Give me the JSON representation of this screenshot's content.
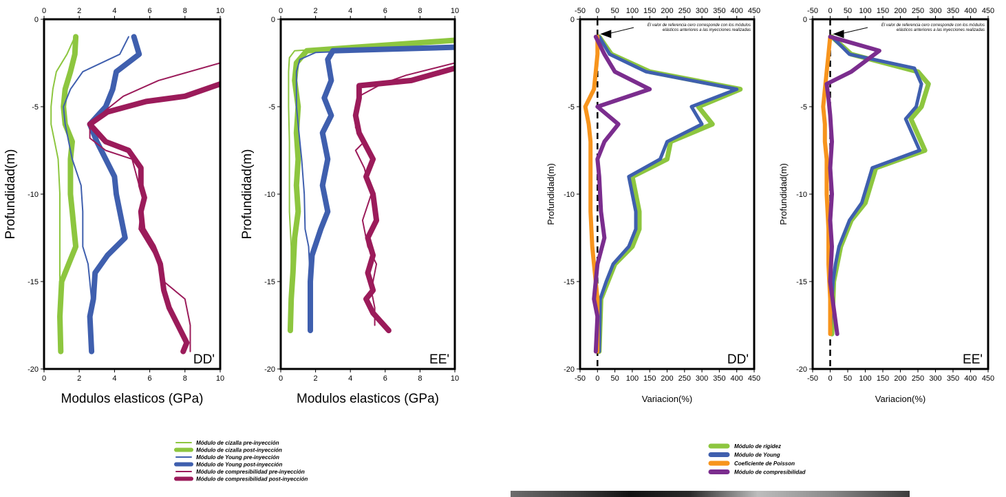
{
  "chart_data": [
    {
      "type": "line",
      "corner_label": "DD'",
      "xlabel": "Modulos elasticos (GPa)",
      "ylabel": "Profundidad(m)",
      "xlim": [
        0,
        10
      ],
      "ylim": [
        -20,
        0
      ],
      "xticks": [
        "0",
        "2",
        "4",
        "6",
        "8",
        "10"
      ],
      "yticks": [
        "0",
        "-5",
        "-10",
        "-15",
        "-20"
      ],
      "ticks_on_top": true,
      "series": [
        {
          "name": "Módulo de cizalla pre-inyección",
          "color": "#8dc63f",
          "width": 2,
          "x": [
            1.75,
            1.3,
            0.7,
            0.5,
            0.4,
            0.4,
            0.6,
            0.8,
            0.9,
            0.9,
            0.9,
            0.9,
            0.9
          ],
          "y": [
            -1,
            -2,
            -3,
            -4,
            -5,
            -6,
            -7,
            -8,
            -10,
            -12,
            -14,
            -17,
            -19
          ]
        },
        {
          "name": "Módulo de cizalla post-inyección",
          "color": "#8dc63f",
          "width": 8,
          "x": [
            1.8,
            1.75,
            1.5,
            1.2,
            1.1,
            1.2,
            1.6,
            1.5,
            1.5,
            1.6,
            1.7,
            1.8,
            1.4,
            1.0,
            0.9,
            0.95
          ],
          "y": [
            -1,
            -2,
            -3,
            -4,
            -5,
            -6,
            -7,
            -8,
            -10,
            -11,
            -12,
            -13,
            -14,
            -15,
            -17,
            -19
          ]
        },
        {
          "name": "Módulo de Young pre-inyección",
          "color": "#3f5fae",
          "width": 2,
          "x": [
            4.8,
            4.3,
            2.2,
            1.5,
            1.1,
            1.2,
            1.4,
            1.6,
            2.1,
            2.2,
            2.2,
            2.2,
            2.5,
            2.7,
            2.6,
            2.6
          ],
          "y": [
            -1,
            -2,
            -3,
            -4,
            -5,
            -6,
            -7,
            -8,
            -9.5,
            -11,
            -12,
            -13,
            -14,
            -16,
            -17.5,
            -19
          ]
        },
        {
          "name": "Módulo de Young post-inyección",
          "color": "#3f5fae",
          "width": 8,
          "x": [
            5.1,
            5.4,
            4.1,
            3.9,
            3.5,
            2.6,
            3.0,
            3.5,
            4.0,
            4.1,
            4.3,
            4.6,
            3.6,
            2.9,
            2.8,
            2.6,
            2.7
          ],
          "y": [
            -1,
            -2,
            -3,
            -4,
            -5,
            -6,
            -7,
            -8,
            -9,
            -10,
            -11,
            -12.5,
            -13.5,
            -14.5,
            -16,
            -17,
            -19
          ]
        },
        {
          "name": "Módulo de compresibilidad pre-inyección",
          "color": "#9b1b5a",
          "width": 2,
          "x": [
            10,
            6.5,
            4.5,
            3.5,
            2.6,
            2.6,
            3.5,
            5.0,
            5.4,
            5.7,
            5.5,
            5.4,
            6.3,
            6.8,
            8.0,
            8.3,
            8.3
          ],
          "y": [
            -2.5,
            -3.5,
            -4.4,
            -5.2,
            -6,
            -6.8,
            -7.5,
            -8,
            -9.5,
            -10.5,
            -11,
            -12,
            -13.5,
            -15,
            -16,
            -17.5,
            -19
          ]
        },
        {
          "name": "Módulo de compresibilidad post-inyección",
          "color": "#9b1b5a",
          "width": 8,
          "x": [
            10,
            8.0,
            5.8,
            4.7,
            3.6,
            2.6,
            3.5,
            4.8,
            5.5,
            5.5,
            5.7,
            5.5,
            5.6,
            6.2,
            6.6,
            6.8,
            7.1,
            7.6,
            8.1,
            7.9
          ],
          "y": [
            -3.7,
            -4.4,
            -4.7,
            -5.0,
            -5.3,
            -6.0,
            -7.0,
            -7.5,
            -8.5,
            -9.5,
            -10.2,
            -11.0,
            -12.0,
            -13.0,
            -14.0,
            -15.5,
            -16.5,
            -17.5,
            -18.5,
            -19
          ]
        }
      ]
    },
    {
      "type": "line",
      "corner_label": "EE'",
      "xlabel": "Modulos elasticos (GPa)",
      "ylabel": "Profundidad(m)",
      "xlim": [
        0,
        10
      ],
      "ylim": [
        -20,
        0
      ],
      "xticks": [
        "0",
        "2",
        "4",
        "6",
        "8",
        "10"
      ],
      "yticks": [
        "0",
        "-5",
        "-10",
        "-15",
        "-20"
      ],
      "ticks_on_top": true,
      "series": [
        {
          "name": "Módulo de cizalla pre-inyección",
          "color": "#8dc63f",
          "width": 2,
          "x": [
            10,
            0.8,
            0.5,
            0.45,
            0.45,
            0.5,
            0.5,
            0.5,
            0.55,
            0.6,
            0.6,
            0.5,
            0.5
          ],
          "y": [
            -1.2,
            -1.8,
            -2.2,
            -3,
            -5,
            -7,
            -9,
            -11,
            -12,
            -13,
            -15,
            -17,
            -17.8
          ]
        },
        {
          "name": "Módulo de cizalla post-inyección",
          "color": "#8dc63f",
          "width": 8,
          "x": [
            10,
            1.5,
            0.9,
            0.8,
            1.0,
            0.9,
            1.0,
            0.9,
            1.0,
            0.8,
            0.7,
            0.6,
            0.55
          ],
          "y": [
            -1.2,
            -1.8,
            -2.5,
            -3.5,
            -5,
            -6.5,
            -8,
            -9.5,
            -11,
            -12.5,
            -14.5,
            -16,
            -17.8
          ]
        },
        {
          "name": "Módulo de Young pre-inyección",
          "color": "#3f5fae",
          "width": 2,
          "x": [
            10,
            2.0,
            1.1,
            0.9,
            0.9,
            0.9,
            1.0,
            1.1,
            1.2,
            1.35,
            1.4,
            1.6,
            1.7,
            1.75,
            1.75
          ],
          "y": [
            -1.6,
            -1.9,
            -2.3,
            -3,
            -4,
            -5,
            -6,
            -7,
            -8,
            -10,
            -12,
            -13,
            -15,
            -17,
            -17.8
          ]
        },
        {
          "name": "Módulo de Young post-inyección",
          "color": "#3f5fae",
          "width": 8,
          "x": [
            10,
            3.0,
            2.7,
            2.9,
            2.5,
            2.9,
            2.4,
            2.7,
            2.4,
            2.7,
            2.3,
            1.8,
            1.7,
            1.7,
            1.7
          ],
          "y": [
            -1.6,
            -1.8,
            -2.3,
            -3.5,
            -4.5,
            -5.5,
            -6.5,
            -8,
            -9.5,
            -11,
            -12,
            -13.5,
            -15,
            -16.5,
            -17.8
          ]
        },
        {
          "name": "Módulo de compresibilidad pre-inyección",
          "color": "#9b1b5a",
          "width": 2,
          "x": [
            10,
            7.2,
            5.8,
            4.5,
            4.3,
            4.3,
            4.8,
            4.3,
            4.8,
            5.2,
            4.7,
            5.0,
            5.5,
            5.2,
            5.4,
            5.4
          ],
          "y": [
            -2.5,
            -3.2,
            -3.7,
            -4.4,
            -5.2,
            -6.2,
            -7.0,
            -7.5,
            -8.5,
            -10,
            -11.5,
            -13,
            -14,
            -15.5,
            -16.5,
            -17.5
          ]
        },
        {
          "name": "Módulo de compresibilidad post-inyección",
          "color": "#9b1b5a",
          "width": 8,
          "x": [
            10,
            7.5,
            4.5,
            4.5,
            4.3,
            4.5,
            5.3,
            4.9,
            5.3,
            5.5,
            5.0,
            5.3,
            5.0,
            5.3,
            4.9,
            5.3,
            6.2
          ],
          "y": [
            -2.8,
            -3.5,
            -3.8,
            -4.5,
            -5.5,
            -6.5,
            -8,
            -9,
            -10,
            -11.5,
            -12.5,
            -13.5,
            -14.5,
            -15.5,
            -16,
            -16.8,
            -17.8
          ]
        }
      ]
    },
    {
      "type": "line",
      "corner_label": "DD'",
      "xlabel": "Variacion(%)",
      "ylabel": "Profundidad(m)",
      "xlim": [
        -50,
        450
      ],
      "ylim": [
        -20,
        0
      ],
      "xticks": [
        "-50",
        "0",
        "50",
        "100",
        "150",
        "200",
        "250",
        "300",
        "350",
        "400",
        "450"
      ],
      "yticks": [
        "0",
        "-5",
        "-10",
        "-15",
        "-20"
      ],
      "ticks_on_top": true,
      "zero_line": true,
      "annotation": "El valor de referencia cero corresponde con los módulos elásticos anteriores a las inyecciones realizadas",
      "series": [
        {
          "name": "Módulo de rigidez",
          "color": "#8dc63f",
          "width": 7,
          "x": [
            5,
            40,
            150,
            410,
            290,
            330,
            210,
            200,
            100,
            120,
            120,
            100,
            50,
            30,
            10,
            5
          ],
          "y": [
            -1,
            -2,
            -3,
            -4,
            -5,
            -6,
            -7,
            -8,
            -9,
            -11,
            -12,
            -13,
            -14,
            -15,
            -16,
            -19
          ]
        },
        {
          "name": "Módulo de Young",
          "color": "#3f5fae",
          "width": 5,
          "x": [
            5,
            35,
            140,
            400,
            270,
            300,
            200,
            180,
            90,
            110,
            110,
            90,
            45,
            25,
            8,
            5
          ],
          "y": [
            -1,
            -2,
            -3,
            -4,
            -5,
            -6,
            -7,
            -8,
            -9,
            -11,
            -12,
            -13,
            -14,
            -15,
            -16,
            -19
          ]
        },
        {
          "name": "Coeficiente de Poisson",
          "color": "#f7941d",
          "width": 6,
          "x": [
            0,
            0,
            -5,
            -10,
            -35,
            -25,
            -20,
            -20,
            -20,
            -20,
            -15,
            -10,
            -5,
            0,
            0
          ],
          "y": [
            -1,
            -2,
            -3,
            -4,
            -5,
            -6,
            -7,
            -8,
            -9,
            -11,
            -13,
            -14,
            -15,
            -16,
            -19
          ]
        },
        {
          "name": "Módulo de compresibilidad",
          "color": "#7b2d8e",
          "width": 6,
          "x": [
            -5,
            20,
            50,
            150,
            0,
            60,
            20,
            0,
            5,
            10,
            20,
            0,
            -10,
            0,
            -5
          ],
          "y": [
            -1,
            -2,
            -3,
            -4,
            -5,
            -6,
            -7,
            -8,
            -9,
            -11,
            -12.5,
            -14,
            -16,
            -17,
            -19
          ]
        }
      ]
    },
    {
      "type": "line",
      "corner_label": "EE'",
      "xlabel": "Variacion(%)",
      "ylabel": "Profundidad(m)",
      "xlim": [
        -50,
        450
      ],
      "ylim": [
        -20,
        0
      ],
      "xticks": [
        "-50",
        "0",
        "50",
        "100",
        "150",
        "200",
        "250",
        "300",
        "350",
        "400",
        "450"
      ],
      "yticks": [
        "0",
        "-5",
        "-10",
        "-15",
        "-20"
      ],
      "ticks_on_top": true,
      "zero_line": true,
      "annotation": "El valor de referencia cero corresponde con los módulos elásticos anteriores a las inyecciones realizadas",
      "series": [
        {
          "name": "Módulo de rigidez",
          "color": "#8dc63f",
          "width": 7,
          "x": [
            5,
            60,
            250,
            280,
            260,
            230,
            270,
            130,
            100,
            60,
            30,
            20,
            10,
            5
          ],
          "y": [
            -1,
            -2,
            -3,
            -3.7,
            -5,
            -5.7,
            -7.5,
            -8.5,
            -10.5,
            -11.5,
            -13,
            -14,
            -15,
            -18
          ]
        },
        {
          "name": "Módulo de Young",
          "color": "#3f5fae",
          "width": 5,
          "x": [
            5,
            55,
            240,
            260,
            245,
            215,
            255,
            120,
            90,
            55,
            25,
            15,
            8,
            0
          ],
          "y": [
            -1,
            -2,
            -2.8,
            -3.7,
            -5,
            -5.7,
            -7.5,
            -8.5,
            -10.5,
            -11.5,
            -13,
            -14,
            -15,
            -18
          ]
        },
        {
          "name": "Coeficiente de Poisson",
          "color": "#f7941d",
          "width": 6,
          "x": [
            0,
            -5,
            -10,
            -15,
            -20,
            -15,
            -15,
            -10,
            -10,
            -5,
            -5,
            0,
            0
          ],
          "y": [
            -1,
            -2,
            -3,
            -4,
            -5,
            -6,
            -7,
            -8,
            -10,
            -12,
            -14,
            -16,
            -18
          ]
        },
        {
          "name": "Módulo de compresibilidad",
          "color": "#7b2d8e",
          "width": 6,
          "x": [
            0,
            140,
            60,
            -10,
            -5,
            0,
            5,
            0,
            5,
            0,
            5,
            0,
            10,
            20
          ],
          "y": [
            -1,
            -1.8,
            -3,
            -3.7,
            -4.5,
            -5.5,
            -7,
            -8.5,
            -10,
            -11.5,
            -13,
            -15,
            -16.5,
            -18
          ]
        }
      ]
    }
  ],
  "legend_left": [
    {
      "label": "Módulo de cizalla pre-inyección",
      "color": "#8dc63f",
      "thick": false
    },
    {
      "label": "Módulo de cizalla post-inyección",
      "color": "#8dc63f",
      "thick": true
    },
    {
      "label": "Módulo de Young pre-inyección",
      "color": "#3f5fae",
      "thick": false
    },
    {
      "label": "Módulo de Young post-inyección",
      "color": "#3f5fae",
      "thick": true
    },
    {
      "label": "Módulo de compresibilidad pre-inyección",
      "color": "#9b1b5a",
      "thick": false
    },
    {
      "label": "Módulo de compresibilidad post-inyección",
      "color": "#9b1b5a",
      "thick": true
    }
  ],
  "legend_right": [
    {
      "label": "Módulo de rigidez",
      "color": "#8dc63f"
    },
    {
      "label": "Módulo de Young",
      "color": "#3f5fae"
    },
    {
      "label": "Coeficiente de Poisson",
      "color": "#f7941d"
    },
    {
      "label": "Módulo de compresibilidad",
      "color": "#7b2d8e"
    }
  ]
}
